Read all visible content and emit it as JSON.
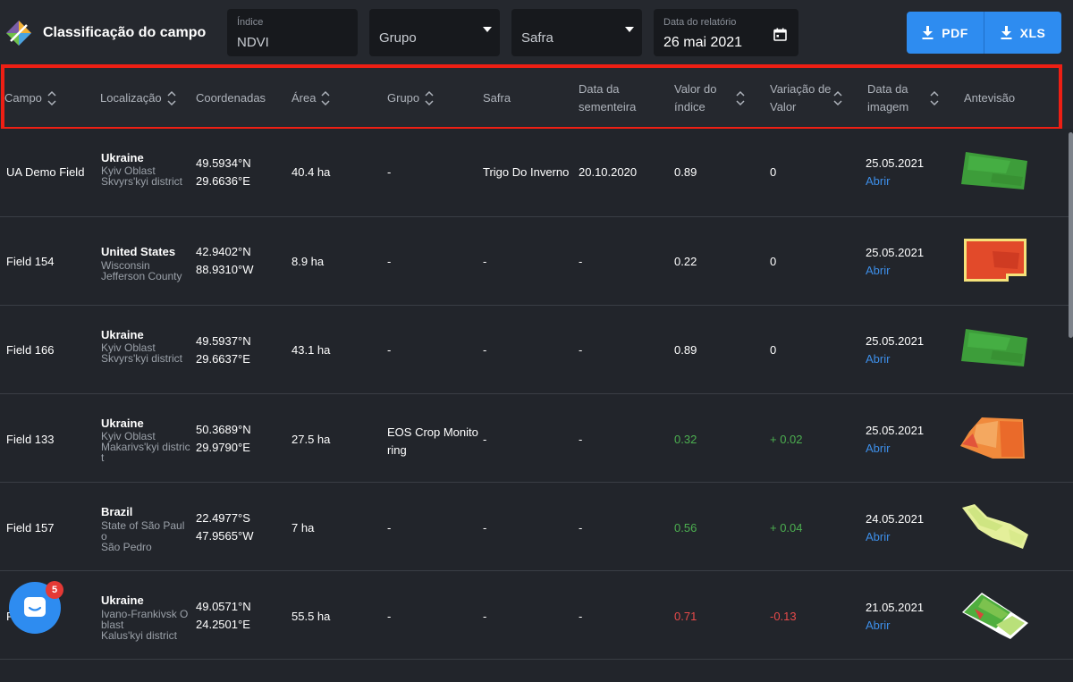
{
  "app": {
    "title": "Classificação do campo",
    "logo_icon": "diamond-logo-icon"
  },
  "filters": {
    "index": {
      "label": "Índice",
      "value": "NDVI"
    },
    "group": {
      "placeholder": "Grupo"
    },
    "season": {
      "placeholder": "Safra"
    },
    "report_date": {
      "label": "Data do relatório",
      "value": "26 mai 2021",
      "icon": "calendar-icon"
    }
  },
  "export": {
    "pdf_label": "PDF",
    "xls_label": "XLS",
    "icon": "download-icon"
  },
  "columns": [
    {
      "key": "campo",
      "line1": "Campo",
      "line2": "",
      "sortable": true
    },
    {
      "key": "localizacao",
      "line1": "Localização",
      "line2": "",
      "sortable": true
    },
    {
      "key": "coordenadas",
      "line1": "Coordenadas",
      "line2": "",
      "sortable": false
    },
    {
      "key": "area",
      "line1": "Área",
      "line2": "",
      "sortable": true
    },
    {
      "key": "grupo",
      "line1": "Grupo",
      "line2": "",
      "sortable": true
    },
    {
      "key": "safra",
      "line1": "Safra",
      "line2": "",
      "sortable": false
    },
    {
      "key": "sementeira",
      "line1": "Data da",
      "line2": "sementeira",
      "sortable": false
    },
    {
      "key": "indice",
      "line1": "Valor do",
      "line2": "índice",
      "sortable": true
    },
    {
      "key": "variacao",
      "line1": "Variação de",
      "line2": "Valor",
      "sortable": true
    },
    {
      "key": "imagem",
      "line1": "Data da",
      "line2": "imagem",
      "sortable": true
    },
    {
      "key": "antevisao",
      "line1": "Antevisão",
      "line2": "",
      "sortable": false
    }
  ],
  "rows": [
    {
      "name": "UA Demo Field",
      "country": "Ukraine",
      "region": "Kyiv Oblast",
      "district": "Skvyrs'kyi district",
      "lat": "49.5934°N",
      "lon": "29.6636°E",
      "area": "40.4 ha",
      "group": "-",
      "season": "Trigo Do Inverno",
      "sowing": "20.10.2020",
      "index": "0.89",
      "index_color": "white",
      "change": "0",
      "change_color": "white",
      "image_date": "25.05.2021",
      "open": "Abrir",
      "preview": "green"
    },
    {
      "name": "Field 154",
      "country": "United States",
      "region": "Wisconsin",
      "district": "Jefferson County",
      "lat": "42.9402°N",
      "lon": "88.9310°W",
      "area": "8.9 ha",
      "group": "-",
      "season": "-",
      "sowing": "-",
      "index": "0.22",
      "index_color": "white",
      "change": "0",
      "change_color": "white",
      "image_date": "25.05.2021",
      "open": "Abrir",
      "preview": "red"
    },
    {
      "name": "Field 166",
      "country": "Ukraine",
      "region": "Kyiv Oblast",
      "district": "Skvyrs'kyi district",
      "lat": "49.5937°N",
      "lon": "29.6637°E",
      "area": "43.1 ha",
      "group": "-",
      "season": "-",
      "sowing": "-",
      "index": "0.89",
      "index_color": "white",
      "change": "0",
      "change_color": "white",
      "image_date": "25.05.2021",
      "open": "Abrir",
      "preview": "green"
    },
    {
      "name": "Field 133",
      "country": "Ukraine",
      "region": "Kyiv Oblast",
      "district": "Makarivs'kyi district",
      "lat": "50.3689°N",
      "lon": "29.9790°E",
      "area": "27.5 ha",
      "group": "EOS Crop Monitoring",
      "season": "-",
      "sowing": "-",
      "index": "0.32",
      "index_color": "green",
      "change": "+ 0.02",
      "change_color": "green",
      "image_date": "25.05.2021",
      "open": "Abrir",
      "preview": "orange"
    },
    {
      "name": "Field 157",
      "country": "Brazil",
      "region": "State of São Paulo",
      "district": "São Pedro",
      "lat": "22.4977°S",
      "lon": "47.9565°W",
      "area": "7 ha",
      "group": "-",
      "season": "-",
      "sowing": "-",
      "index": "0.56",
      "index_color": "green",
      "change": "+ 0.04",
      "change_color": "green",
      "image_date": "24.05.2021",
      "open": "Abrir",
      "preview": "lightgreen"
    },
    {
      "name": "Field",
      "country": "Ukraine",
      "region": "Ivano-Frankivsk Oblast",
      "district": "Kalus'kyi district",
      "lat": "49.0571°N",
      "lon": "24.2501°E",
      "area": "55.5 ha",
      "group": "-",
      "season": "-",
      "sowing": "-",
      "index": "0.71",
      "index_color": "red",
      "change": "-0.13",
      "change_color": "red",
      "image_date": "21.05.2021",
      "open": "Abrir",
      "preview": "mixed"
    }
  ],
  "chat": {
    "badge_count": "5",
    "icon": "chat-icon"
  },
  "colors": {
    "accent": "#2e8cf0",
    "positive": "#4caf50",
    "negative": "#e84a4a",
    "highlight": "#ee1f14"
  }
}
